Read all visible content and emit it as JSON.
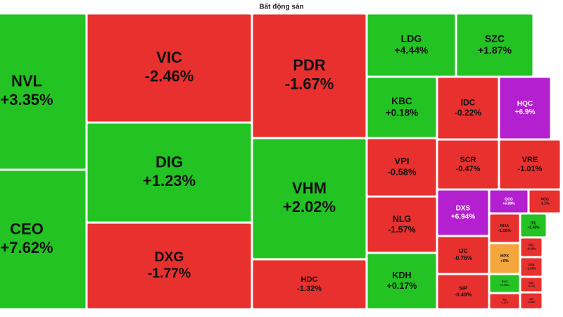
{
  "chart_data": {
    "type": "treemap",
    "title": "Bất động sản",
    "categories": [
      "NVL",
      "CEO",
      "VIC",
      "DIG",
      "DXG",
      "PDR",
      "VHM",
      "HDC",
      "LDG",
      "SZC",
      "KBC",
      "IDC",
      "HQC",
      "VPI",
      "SCR",
      "VRE",
      "NLG",
      "KDH",
      "DXS",
      "QCG",
      "AGG",
      "IJC",
      "SIP",
      "NHA",
      "ITC",
      "HPX",
      "TDC",
      "DTD",
      "EVG",
      "NRC",
      "TIG",
      "API"
    ],
    "values": [
      3.35,
      7.62,
      -2.46,
      1.23,
      -1.77,
      -1.67,
      2.02,
      -1.32,
      4.44,
      1.87,
      0.18,
      -0.22,
      6.9,
      -0.58,
      -0.47,
      -1.01,
      -1.57,
      0.17,
      6.94,
      6.89,
      -1.1,
      -0.76,
      -0.49,
      -1.08,
      2.45,
      0,
      -0.42,
      -1.05,
      0.75,
      -5.71,
      -1.22,
      -3.36
    ],
    "value_labels": [
      "+3.35%",
      "+7.62%",
      "-2.46%",
      "+1.23%",
      "-1.77%",
      "-1.67%",
      "+2.02%",
      "-1.32%",
      "+4.44%",
      "+1.87%",
      "+0.18%",
      "-0.22%",
      "+6.9%",
      "-0.58%",
      "-0.47%",
      "-1.01%",
      "-1.57%",
      "+0.17%",
      "+6.94%",
      "+6.89%",
      "-1.1%",
      "-0.76%",
      "-0.49%",
      "-1.08%",
      "+2.45%",
      "+0%",
      "-0.42%",
      "-1.05%",
      "+0.75%",
      "-5.71%",
      "-1.22%",
      "-3.36%"
    ]
  }
}
